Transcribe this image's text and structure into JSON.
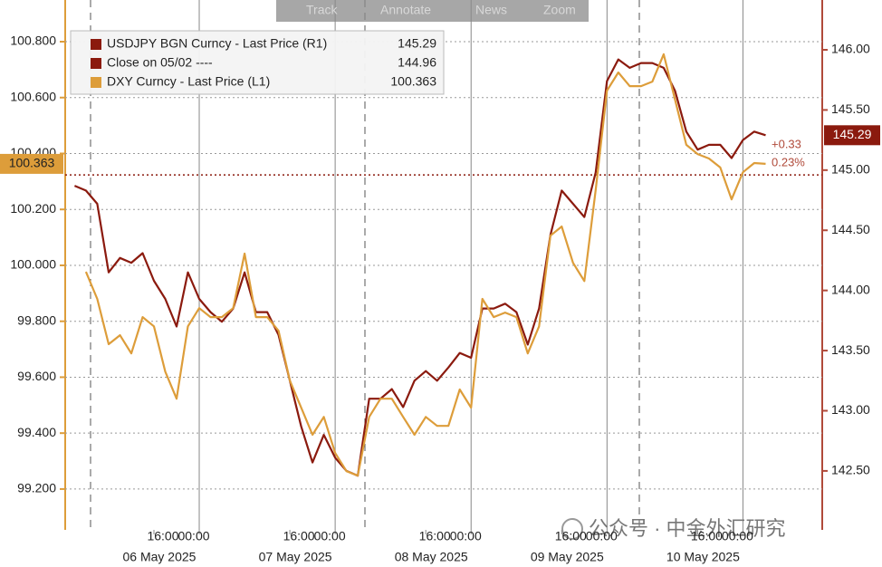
{
  "toolbar": [
    "Track",
    "Annotate",
    "News",
    "Zoom"
  ],
  "watermark": "公众号 · 中金外汇研究",
  "chart_data": {
    "type": "line",
    "x": [
      "2025-05-05 02:00",
      "2025-05-05 04:00",
      "2025-05-05 06:00",
      "2025-05-05 08:00",
      "2025-05-05 10:00",
      "2025-05-05 12:00",
      "2025-05-05 14:00",
      "2025-05-05 16:00",
      "2025-05-05 18:00",
      "2025-05-05 20:00",
      "2025-05-05 22:00",
      "2025-05-06 00:00",
      "2025-05-06 02:00",
      "2025-05-06 04:00",
      "2025-05-06 06:00",
      "2025-05-06 08:00",
      "2025-05-06 10:00",
      "2025-05-06 12:00",
      "2025-05-06 14:00",
      "2025-05-06 16:00",
      "2025-05-06 18:00",
      "2025-05-06 20:00",
      "2025-05-06 22:00",
      "2025-05-07 00:00",
      "2025-05-07 02:00",
      "2025-05-07 04:00",
      "2025-05-07 06:00",
      "2025-05-07 08:00",
      "2025-05-07 10:00",
      "2025-05-07 12:00",
      "2025-05-07 14:00",
      "2025-05-07 16:00",
      "2025-05-07 18:00",
      "2025-05-07 20:00",
      "2025-05-07 22:00",
      "2025-05-08 00:00",
      "2025-05-08 02:00",
      "2025-05-08 04:00",
      "2025-05-08 06:00",
      "2025-05-08 08:00",
      "2025-05-08 10:00",
      "2025-05-08 12:00",
      "2025-05-08 14:00",
      "2025-05-08 16:00",
      "2025-05-08 18:00",
      "2025-05-08 20:00",
      "2025-05-08 22:00",
      "2025-05-09 00:00",
      "2025-05-09 02:00",
      "2025-05-09 04:00",
      "2025-05-09 06:00",
      "2025-05-09 08:00",
      "2025-05-09 10:00",
      "2025-05-09 12:00",
      "2025-05-09 14:00",
      "2025-05-09 16:00",
      "2025-05-09 18:00",
      "2025-05-09 20:00",
      "2025-05-09 22:00",
      "2025-05-10 00:00",
      "2025-05-10 02:00",
      "2025-05-10 04:00"
    ],
    "series": [
      {
        "name": "USDJPY BGN Curncy - Last Price (R1)",
        "color": "#8b1a0e",
        "axis": "y2",
        "legend_value": 145.29,
        "values": [
          144.87,
          144.83,
          144.72,
          144.15,
          144.27,
          144.23,
          144.31,
          144.08,
          143.93,
          143.7,
          144.15,
          143.93,
          143.82,
          143.74,
          143.85,
          144.15,
          143.82,
          143.82,
          143.63,
          143.25,
          142.87,
          142.57,
          142.8,
          142.61,
          142.5,
          142.46,
          143.1,
          143.1,
          143.18,
          143.03,
          143.25,
          143.33,
          143.25,
          143.36,
          143.48,
          143.44,
          143.85,
          143.85,
          143.89,
          143.82,
          143.55,
          143.85,
          144.46,
          144.83,
          144.72,
          144.61,
          144.98,
          145.74,
          145.92,
          145.85,
          145.89,
          145.89,
          145.85,
          145.66,
          145.32,
          145.17,
          145.21,
          145.21,
          145.1,
          145.25,
          145.32,
          145.29
        ]
      },
      {
        "name": "Close on 05/02 ----",
        "color": "#8b1a0e",
        "axis": "y2",
        "value": 144.96
      },
      {
        "name": "DXY Curncy - Last Price (L1)",
        "color": "#dd9d3a",
        "legend_value": 100.363,
        "values": [
          null,
          99.977,
          99.88,
          99.718,
          99.75,
          99.685,
          99.815,
          99.782,
          99.62,
          99.523,
          99.782,
          99.847,
          99.815,
          99.815,
          99.847,
          100.042,
          99.815,
          99.815,
          99.766,
          99.588,
          99.491,
          99.394,
          99.458,
          99.329,
          99.264,
          99.248,
          99.458,
          99.523,
          99.523,
          99.458,
          99.394,
          99.458,
          99.426,
          99.426,
          99.556,
          99.491,
          99.88,
          99.815,
          99.831,
          99.815,
          99.685,
          99.782,
          100.106,
          100.139,
          100.009,
          99.944,
          100.269,
          100.625,
          100.69,
          100.641,
          100.641,
          100.657,
          100.755,
          100.593,
          100.431,
          100.398,
          100.382,
          100.35,
          100.236,
          100.333,
          100.366,
          100.363
        ]
      }
    ],
    "change_labels": [
      "+0.33",
      "0.23%"
    ],
    "xlim": [
      "2025-05-05 00:20",
      "2025-05-10 14:00"
    ],
    "xticks": [
      {
        "value": "2025-05-05 16:00",
        "label": "16:00"
      },
      {
        "value": "2025-05-06 00:00",
        "label": "00:00"
      },
      {
        "value": "2025-05-06 16:00",
        "label": "16:00"
      },
      {
        "value": "2025-05-07 00:00",
        "label": "00:00"
      },
      {
        "value": "2025-05-07 16:00",
        "label": "16:00"
      },
      {
        "value": "2025-05-08 00:00",
        "label": "00:00"
      },
      {
        "value": "2025-05-08 16:00",
        "label": "16:00"
      },
      {
        "value": "2025-05-09 00:00",
        "label": "00:00"
      },
      {
        "value": "2025-05-09 16:00",
        "label": "16:00"
      },
      {
        "value": "2025-05-10 00:00",
        "label": "00:00"
      }
    ],
    "date_labels": [
      "06 May 2025",
      "07 May 2025",
      "08 May 2025",
      "09 May 2025",
      "10 May 2025"
    ],
    "ylim": [
      99.054,
      100.949
    ],
    "yticks": [
      {
        "value": 99.2,
        "label": "99.200"
      },
      {
        "value": 99.4,
        "label": "99.400"
      },
      {
        "value": 99.6,
        "label": "99.600"
      },
      {
        "value": 99.8,
        "label": "99.800"
      },
      {
        "value": 100,
        "label": "100.000"
      },
      {
        "value": 100.2,
        "label": "100.200"
      },
      {
        "value": 100.4,
        "label": "100.400"
      },
      {
        "value": 100.6,
        "label": "100.600"
      },
      {
        "value": 100.8,
        "label": "100.800"
      }
    ],
    "y2lim": [
      142.01,
      146.414
    ],
    "y2ticks": [
      {
        "value": 142.5,
        "label": "142.50"
      },
      {
        "value": 143,
        "label": "143.00"
      },
      {
        "value": 143.5,
        "label": "143.50"
      },
      {
        "value": 144,
        "label": "144.00"
      },
      {
        "value": 144.5,
        "label": "144.50"
      },
      {
        "value": 145,
        "label": "145.00"
      },
      {
        "value": 145.5,
        "label": "145.50"
      },
      {
        "value": 146,
        "label": "146.00"
      }
    ],
    "grid": true
  }
}
